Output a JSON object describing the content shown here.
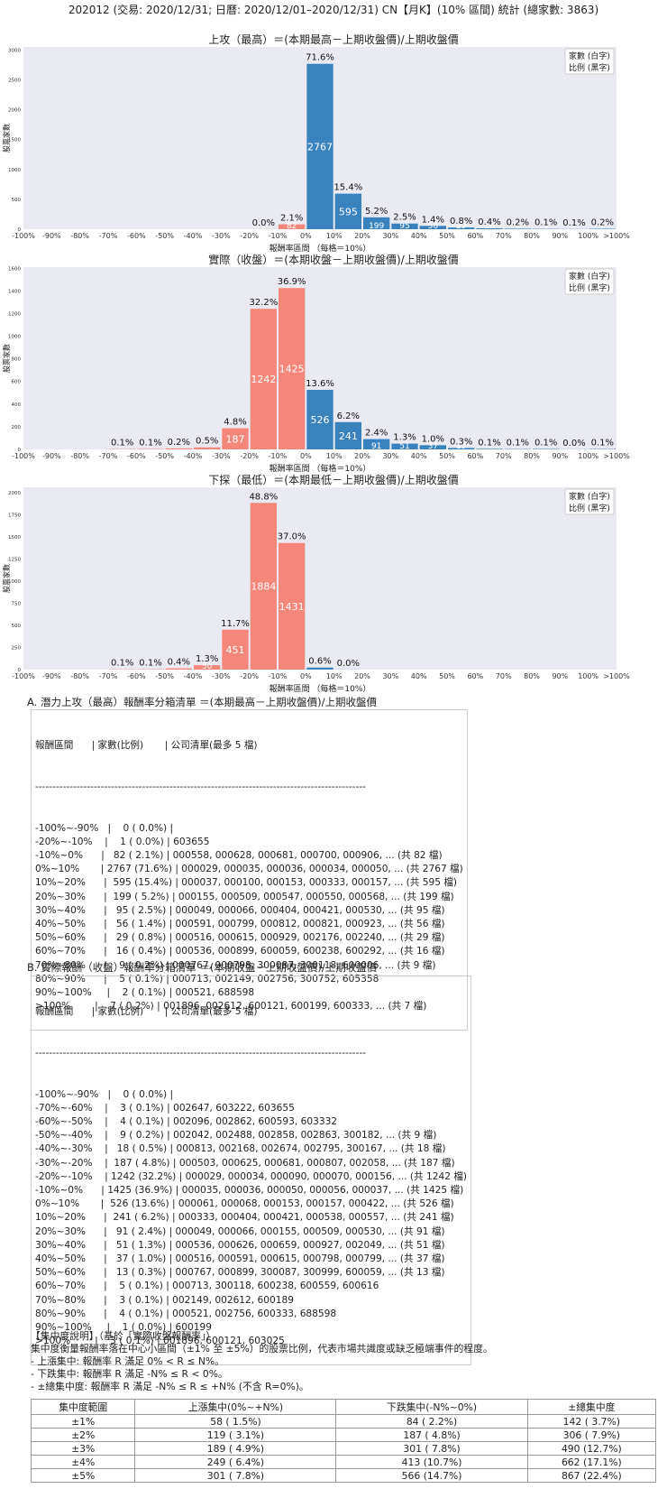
{
  "page_title": "202012 (交易: 2020/12/31; 日曆: 2020/12/01–2020/12/31) CN【月K】(10% 區間) 統計 (總家數: 3863)",
  "legend_lines": [
    "家數 (白字)",
    "比例 (黑字)"
  ],
  "colors": {
    "negative": "#f4877a",
    "positive": "#3a82be",
    "plot_bg": "#eaeaf2"
  },
  "chart_data": [
    {
      "type": "bar",
      "title": "上攻（最高）＝(本期最高－上期收盤價)/上期收盤價",
      "xlabel": "報酬率區間 （每格＝10%）",
      "ylabel": "股票家數",
      "x_ticks": [
        "-100%",
        "-90%",
        "-80%",
        "-70%",
        "-60%",
        "-50%",
        "-40%",
        "-30%",
        "-20%",
        "-10%",
        "0%",
        "10%",
        "20%",
        "30%",
        "40%",
        "50%",
        "60%",
        "70%",
        "80%",
        "90%",
        "100%",
        ">100%"
      ],
      "y_ticks": [
        0,
        500,
        1000,
        1500,
        2000,
        2500,
        3000
      ],
      "ylim": [
        0,
        3050
      ],
      "counts": [
        0,
        0,
        0,
        0,
        0,
        0,
        0,
        0,
        1,
        82,
        2767,
        595,
        199,
        95,
        56,
        29,
        16,
        9,
        5,
        2,
        7
      ],
      "count_labels": [
        "",
        "",
        "",
        "",
        "",
        "",
        "",
        "",
        "",
        "82",
        "2767",
        "595",
        "199",
        "95",
        "56",
        "29",
        "16",
        "9",
        "5",
        "2",
        "7"
      ],
      "pct_labels": [
        "",
        "",
        "",
        "",
        "",
        "",
        "",
        "",
        "0.0%",
        "2.1%",
        "71.6%",
        "15.4%",
        "5.2%",
        "2.5%",
        "1.4%",
        "0.8%",
        "0.4%",
        "0.2%",
        "0.1%",
        "0.1%",
        "0.2%"
      ]
    },
    {
      "type": "bar",
      "title": "實際（收盤）＝(本期收盤－上期收盤價)/上期收盤價",
      "xlabel": "報酬率區間 （每格＝10%）",
      "ylabel": "股票家數",
      "x_ticks": [
        "-100%",
        "-90%",
        "-80%",
        "-70%",
        "-60%",
        "-50%",
        "-40%",
        "-30%",
        "-20%",
        "-10%",
        "0%",
        "10%",
        "20%",
        "30%",
        "40%",
        "50%",
        "60%",
        "70%",
        "80%",
        "90%",
        "100%",
        ">100%"
      ],
      "y_ticks": [
        0,
        200,
        400,
        600,
        800,
        1000,
        1200,
        1400,
        1600
      ],
      "ylim": [
        0,
        1610
      ],
      "counts": [
        0,
        0,
        0,
        3,
        4,
        9,
        18,
        187,
        1242,
        1425,
        526,
        241,
        91,
        51,
        37,
        13,
        5,
        3,
        4,
        1,
        3
      ],
      "count_labels": [
        "",
        "",
        "",
        "",
        "",
        "",
        "",
        "187",
        "1242",
        "1425",
        "526",
        "241",
        "91",
        "51",
        "37",
        "13",
        "",
        "",
        "",
        "",
        ""
      ],
      "pct_labels": [
        "",
        "",
        "",
        "0.1%",
        "0.1%",
        "0.2%",
        "0.5%",
        "4.8%",
        "32.2%",
        "36.9%",
        "13.6%",
        "6.2%",
        "2.4%",
        "1.3%",
        "1.0%",
        "0.3%",
        "0.1%",
        "0.1%",
        "0.1%",
        "0.0%",
        "0.1%"
      ]
    },
    {
      "type": "bar",
      "title": "下探（最低）＝(本期最低－上期收盤價)/上期收盤價",
      "xlabel": "報酬率區間 （每格＝10%）",
      "ylabel": "股票家數",
      "x_ticks": [
        "-100%",
        "-90%",
        "-80%",
        "-70%",
        "-60%",
        "-50%",
        "-40%",
        "-30%",
        "-20%",
        "-10%",
        "0%",
        "10%",
        "20%",
        "30%",
        "40%",
        "50%",
        "60%",
        "70%",
        "80%",
        "90%",
        "100%",
        ">100%"
      ],
      "y_ticks": [
        0,
        250,
        500,
        750,
        1000,
        1250,
        1500,
        1750,
        2000
      ],
      "ylim": [
        0,
        2060
      ],
      "counts": [
        0,
        0,
        0,
        3,
        4,
        14,
        50,
        451,
        1884,
        1431,
        23,
        1,
        0,
        0,
        0,
        0,
        0,
        0,
        0,
        0,
        0
      ],
      "count_labels": [
        "",
        "",
        "",
        "",
        "",
        "",
        "50",
        "451",
        "1884",
        "1431",
        "",
        "",
        "",
        "",
        "",
        "",
        "",
        "",
        "",
        "",
        ""
      ],
      "pct_labels": [
        "",
        "",
        "",
        "0.1%",
        "0.1%",
        "0.4%",
        "1.3%",
        "11.7%",
        "48.8%",
        "37.0%",
        "0.6%",
        "0.0%",
        "",
        "",
        "",
        "",
        "",
        "",
        "",
        "",
        ""
      ]
    }
  ],
  "section_a": {
    "title": "A. 潛力上攻（最高）報酬率分箱清單 ＝(本期最高－上期收盤價)/上期收盤價",
    "header": "報酬區間      | 家數(比例)       | 公司清單(最多 5 檔)",
    "divider": "------------------------------------------------------------------------------------------------",
    "rows": [
      "-100%~-90%   |    0 ( 0.0%) |",
      "-20%~-10%    |    1 ( 0.0%) | 603655",
      "-10%~0%      |   82 ( 2.1%) | 000558, 000628, 000681, 000700, 000906, ... (共 82 檔)",
      "0%~10%       | 2767 (71.6%) | 000029, 000035, 000036, 000034, 000050, ... (共 2767 檔)",
      "10%~20%      |  595 (15.4%) | 000037, 000100, 000153, 000333, 000157, ... (共 595 檔)",
      "20%~30%      |  199 ( 5.2%) | 000155, 000509, 000547, 000550, 000568, ... (共 199 檔)",
      "30%~40%      |   95 ( 2.5%) | 000049, 000066, 000404, 000421, 000530, ... (共 95 檔)",
      "40%~50%      |   56 ( 1.4%) | 000591, 000799, 000812, 000821, 000923, ... (共 56 檔)",
      "50%~60%      |   29 ( 0.8%) | 000516, 000615, 000929, 002176, 002240, ... (共 29 檔)",
      "60%~70%      |   16 ( 0.4%) | 000536, 000899, 600059, 600238, 600292, ... (共 16 檔)",
      "70%~80%      |    9 ( 0.2%) | 000767, 000798, 300087, 300118, 600006, ... (共 9 檔)",
      "80%~90%      |    5 ( 0.1%) | 000713, 002149, 002756, 300752, 605358",
      "90%~100%     |    2 ( 0.1%) | 000521, 688598",
      ">100%        |    7 ( 0.2%) | 001896, 002612, 600121, 600199, 600333, ... (共 7 檔)"
    ]
  },
  "section_b": {
    "title": "B. 實際報酬（收盤）報酬率分箱清單 ＝(本期收盤－上期收盤價)/上期收盤價",
    "header": "報酬區間      | 家數(比例)       | 公司清單(最多 5 檔)",
    "divider": "------------------------------------------------------------------------------------------------",
    "rows": [
      "-100%~-90%   |    0 ( 0.0%) |",
      "-70%~-60%    |    3 ( 0.1%) | 002647, 603222, 603655",
      "-60%~-50%    |    4 ( 0.1%) | 002096, 002862, 600593, 603332",
      "-50%~-40%    |    9 ( 0.2%) | 002042, 002488, 002858, 002863, 300182, ... (共 9 檔)",
      "-40%~-30%    |   18 ( 0.5%) | 000813, 002168, 002674, 002795, 300167, ... (共 18 檔)",
      "-30%~-20%    |  187 ( 4.8%) | 000503, 000625, 000681, 000807, 002058, ... (共 187 檔)",
      "-20%~-10%    | 1242 (32.2%) | 000029, 000034, 000090, 000070, 000156, ... (共 1242 檔)",
      "-10%~0%      | 1425 (36.9%) | 000035, 000036, 000050, 000056, 000037, ... (共 1425 檔)",
      "0%~10%       |  526 (13.6%) | 000061, 000068, 000153, 000157, 000422, ... (共 526 檔)",
      "10%~20%      |  241 ( 6.2%) | 000333, 000404, 000421, 000538, 000557, ... (共 241 檔)",
      "20%~30%      |   91 ( 2.4%) | 000049, 000066, 000155, 000509, 000530, ... (共 91 檔)",
      "30%~40%      |   51 ( 1.3%) | 000536, 000626, 000659, 000927, 002049, ... (共 51 檔)",
      "40%~50%      |   37 ( 1.0%) | 000516, 000591, 000615, 000798, 000799, ... (共 37 檔)",
      "50%~60%      |   13 ( 0.3%) | 000767, 000899, 300087, 300999, 600059, ... (共 13 檔)",
      "60%~70%      |    5 ( 0.1%) | 000713, 300118, 600238, 600559, 600616",
      "70%~80%      |    3 ( 0.1%) | 002149, 002612, 600189",
      "80%~90%      |    4 ( 0.1%) | 000521, 002756, 600333, 688598",
      "90%~100%     |    1 ( 0.0%) | 600199",
      ">100%        |    3 ( 0.1%) | 001896, 600121, 603025"
    ]
  },
  "concentration": {
    "lines": [
      "【集中度說明】（基於「實際收盤報酬率」）",
      "集中度衡量報酬率落在中心小區間（±1% 至 ±5%）的股票比例，代表市場共識度或缺乏極端事件的程度。",
      " - 上漲集中: 報酬率 R 滿足 0% < R ≤ N%。",
      " - 下跌集中: 報酬率 R 滿足 -N% ≤ R < 0%。",
      " - ±總集中度: 報酬率 R 滿足 -N% ≤ R ≤ +N% (不含 R=0%)。"
    ],
    "headers": [
      "集中度範圍",
      "上漲集中(0%~+N%)",
      "下跌集中(-N%~0%)",
      "±總集中度"
    ],
    "rows": [
      [
        "±1%",
        "58 ( 1.5%)",
        "84 ( 2.2%)",
        "142 ( 3.7%)"
      ],
      [
        "±2%",
        "119 ( 3.1%)",
        "187 ( 4.8%)",
        "306 ( 7.9%)"
      ],
      [
        "±3%",
        "189 ( 4.9%)",
        "301 ( 7.8%)",
        "490 (12.7%)"
      ],
      [
        "±4%",
        "249 ( 6.4%)",
        "413 (10.7%)",
        "662 (17.1%)"
      ],
      [
        "±5%",
        "301 ( 7.8%)",
        "566 (14.7%)",
        "867 (22.4%)"
      ]
    ]
  }
}
